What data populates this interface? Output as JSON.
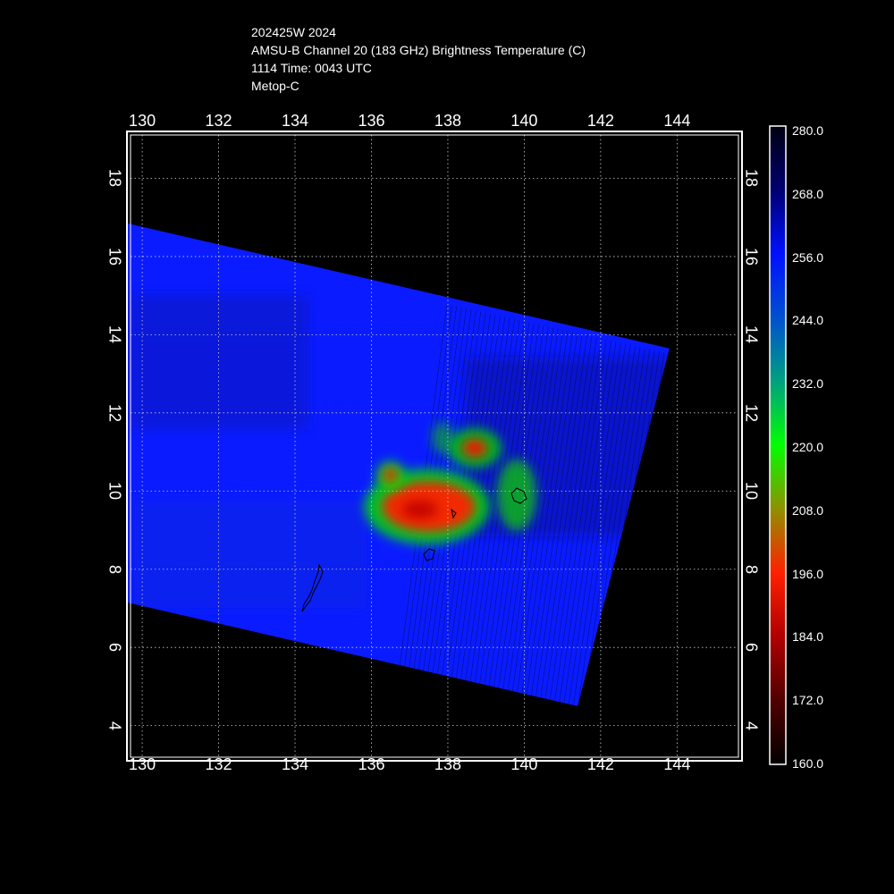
{
  "header": {
    "storm_id": "202425W 2024",
    "product": "AMSU-B Channel 20 (183 GHz) Brightness Temperature (C)",
    "time": "1114 Time: 0043 UTC",
    "satellite": "Metop-C"
  },
  "map": {
    "lon_range": [
      129.6,
      145.7
    ],
    "lat_range": [
      3.1,
      19.2
    ],
    "lon_ticks": [
      "130",
      "132",
      "134",
      "136",
      "138",
      "140",
      "142",
      "144"
    ],
    "lat_ticks": [
      "4",
      "6",
      "8",
      "10",
      "12",
      "14",
      "16",
      "18"
    ],
    "grid": true,
    "swath_corners_lonlat": [
      [
        129.6,
        16.85
      ],
      [
        143.8,
        13.65
      ],
      [
        141.4,
        4.5
      ],
      [
        129.6,
        7.15
      ]
    ],
    "background_color": "#0a1cff",
    "features": [
      {
        "name": "core-a",
        "lon": 137.5,
        "lat": 9.6,
        "intensity": "red"
      },
      {
        "name": "core-b",
        "lon": 138.7,
        "lat": 11.1,
        "intensity": "red"
      },
      {
        "name": "core-c",
        "lon": 136.5,
        "lat": 10.4,
        "intensity": "red"
      },
      {
        "name": "band-d",
        "lon": 139.8,
        "lat": 9.9,
        "intensity": "green"
      }
    ]
  },
  "colorbar": {
    "unit": "C",
    "labels": [
      "280.0",
      "268.0",
      "256.0",
      "244.0",
      "232.0",
      "220.0",
      "208.0",
      "196.0",
      "184.0",
      "172.0",
      "160.0"
    ],
    "colors": [
      "#000010",
      "#000070",
      "#0010ff",
      "#0060c0",
      "#00b070",
      "#00ff00",
      "#909000",
      "#ff2000",
      "#b00000",
      "#500000",
      "#000000"
    ]
  }
}
